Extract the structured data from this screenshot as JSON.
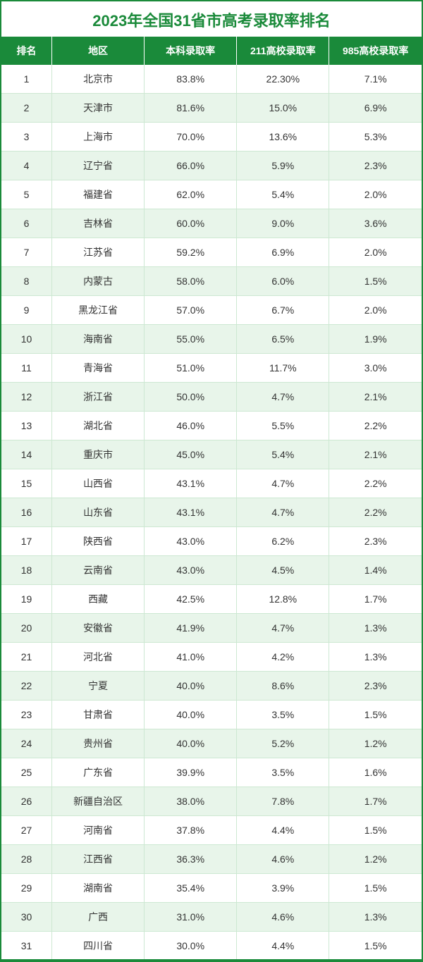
{
  "title": "2023年全国31省市高考录取率排名",
  "columns": [
    "排名",
    "地区",
    "本科录取率",
    "211高校录取率",
    "985高校录取率"
  ],
  "column_widths_pct": [
    12,
    22,
    22,
    22,
    22
  ],
  "colors": {
    "brand_green": "#1a8a3a",
    "header_text": "#ffffff",
    "row_even_bg": "#e8f5ea",
    "row_odd_bg": "#ffffff",
    "cell_border": "#cde8d2",
    "body_text": "#333333"
  },
  "typography": {
    "title_fontsize": 22,
    "title_weight": "bold",
    "header_fontsize": 14,
    "cell_fontsize": 14,
    "font_family": "Microsoft YaHei"
  },
  "rows": [
    {
      "rank": "1",
      "region": "北京市",
      "ug": "83.8%",
      "r211": "22.30%",
      "r985": "7.1%"
    },
    {
      "rank": "2",
      "region": "天津市",
      "ug": "81.6%",
      "r211": "15.0%",
      "r985": "6.9%"
    },
    {
      "rank": "3",
      "region": "上海市",
      "ug": "70.0%",
      "r211": "13.6%",
      "r985": "5.3%"
    },
    {
      "rank": "4",
      "region": "辽宁省",
      "ug": "66.0%",
      "r211": "5.9%",
      "r985": "2.3%"
    },
    {
      "rank": "5",
      "region": "福建省",
      "ug": "62.0%",
      "r211": "5.4%",
      "r985": "2.0%"
    },
    {
      "rank": "6",
      "region": "吉林省",
      "ug": "60.0%",
      "r211": "9.0%",
      "r985": "3.6%"
    },
    {
      "rank": "7",
      "region": "江苏省",
      "ug": "59.2%",
      "r211": "6.9%",
      "r985": "2.0%"
    },
    {
      "rank": "8",
      "region": "内蒙古",
      "ug": "58.0%",
      "r211": "6.0%",
      "r985": "1.5%"
    },
    {
      "rank": "9",
      "region": "黑龙江省",
      "ug": "57.0%",
      "r211": "6.7%",
      "r985": "2.0%"
    },
    {
      "rank": "10",
      "region": "海南省",
      "ug": "55.0%",
      "r211": "6.5%",
      "r985": "1.9%"
    },
    {
      "rank": "11",
      "region": "青海省",
      "ug": "51.0%",
      "r211": "11.7%",
      "r985": "3.0%"
    },
    {
      "rank": "12",
      "region": "浙江省",
      "ug": "50.0%",
      "r211": "4.7%",
      "r985": "2.1%"
    },
    {
      "rank": "13",
      "region": "湖北省",
      "ug": "46.0%",
      "r211": "5.5%",
      "r985": "2.2%"
    },
    {
      "rank": "14",
      "region": "重庆市",
      "ug": "45.0%",
      "r211": "5.4%",
      "r985": "2.1%"
    },
    {
      "rank": "15",
      "region": "山西省",
      "ug": "43.1%",
      "r211": "4.7%",
      "r985": "2.2%"
    },
    {
      "rank": "16",
      "region": "山东省",
      "ug": "43.1%",
      "r211": "4.7%",
      "r985": "2.2%"
    },
    {
      "rank": "17",
      "region": "陕西省",
      "ug": "43.0%",
      "r211": "6.2%",
      "r985": "2.3%"
    },
    {
      "rank": "18",
      "region": "云南省",
      "ug": "43.0%",
      "r211": "4.5%",
      "r985": "1.4%"
    },
    {
      "rank": "19",
      "region": "西藏",
      "ug": "42.5%",
      "r211": "12.8%",
      "r985": "1.7%"
    },
    {
      "rank": "20",
      "region": "安徽省",
      "ug": "41.9%",
      "r211": "4.7%",
      "r985": "1.3%"
    },
    {
      "rank": "21",
      "region": "河北省",
      "ug": "41.0%",
      "r211": "4.2%",
      "r985": "1.3%"
    },
    {
      "rank": "22",
      "region": "宁夏",
      "ug": "40.0%",
      "r211": "8.6%",
      "r985": "2.3%"
    },
    {
      "rank": "23",
      "region": "甘肃省",
      "ug": "40.0%",
      "r211": "3.5%",
      "r985": "1.5%"
    },
    {
      "rank": "24",
      "region": "贵州省",
      "ug": "40.0%",
      "r211": "5.2%",
      "r985": "1.2%"
    },
    {
      "rank": "25",
      "region": "广东省",
      "ug": "39.9%",
      "r211": "3.5%",
      "r985": "1.6%"
    },
    {
      "rank": "26",
      "region": "新疆自治区",
      "ug": "38.0%",
      "r211": "7.8%",
      "r985": "1.7%"
    },
    {
      "rank": "27",
      "region": "河南省",
      "ug": "37.8%",
      "r211": "4.4%",
      "r985": "1.5%"
    },
    {
      "rank": "28",
      "region": "江西省",
      "ug": "36.3%",
      "r211": "4.6%",
      "r985": "1.2%"
    },
    {
      "rank": "29",
      "region": "湖南省",
      "ug": "35.4%",
      "r211": "3.9%",
      "r985": "1.5%"
    },
    {
      "rank": "30",
      "region": "广西",
      "ug": "31.0%",
      "r211": "4.6%",
      "r985": "1.3%"
    },
    {
      "rank": "31",
      "region": "四川省",
      "ug": "30.0%",
      "r211": "4.4%",
      "r985": "1.5%"
    }
  ]
}
